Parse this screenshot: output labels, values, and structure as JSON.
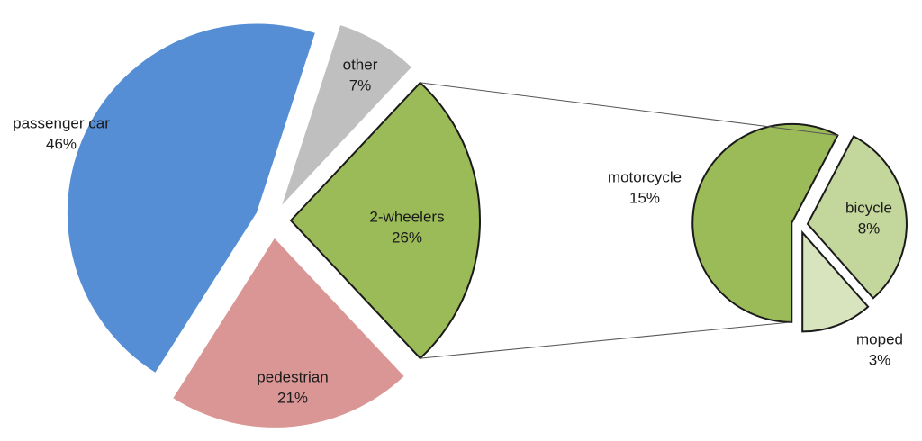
{
  "chart_data": [
    {
      "type": "pie",
      "categories": [
        "2-wheelers",
        "pedestrian",
        "passenger car",
        "other"
      ],
      "values": [
        26,
        21,
        46,
        7
      ],
      "value_labels": [
        "26%",
        "21%",
        "46%",
        "7%"
      ],
      "colors": [
        "#9bbb59",
        "#d99694",
        "#558ed5",
        "#bfbfbf"
      ]
    },
    {
      "type": "pie",
      "categories": [
        "motorcycle",
        "bicycle",
        "moped"
      ],
      "values": [
        15,
        8,
        3
      ],
      "value_labels": [
        "15%",
        "8%",
        "3%"
      ],
      "colors": [
        "#9bbb59",
        "#c3d69b",
        "#d7e4bd"
      ]
    }
  ]
}
